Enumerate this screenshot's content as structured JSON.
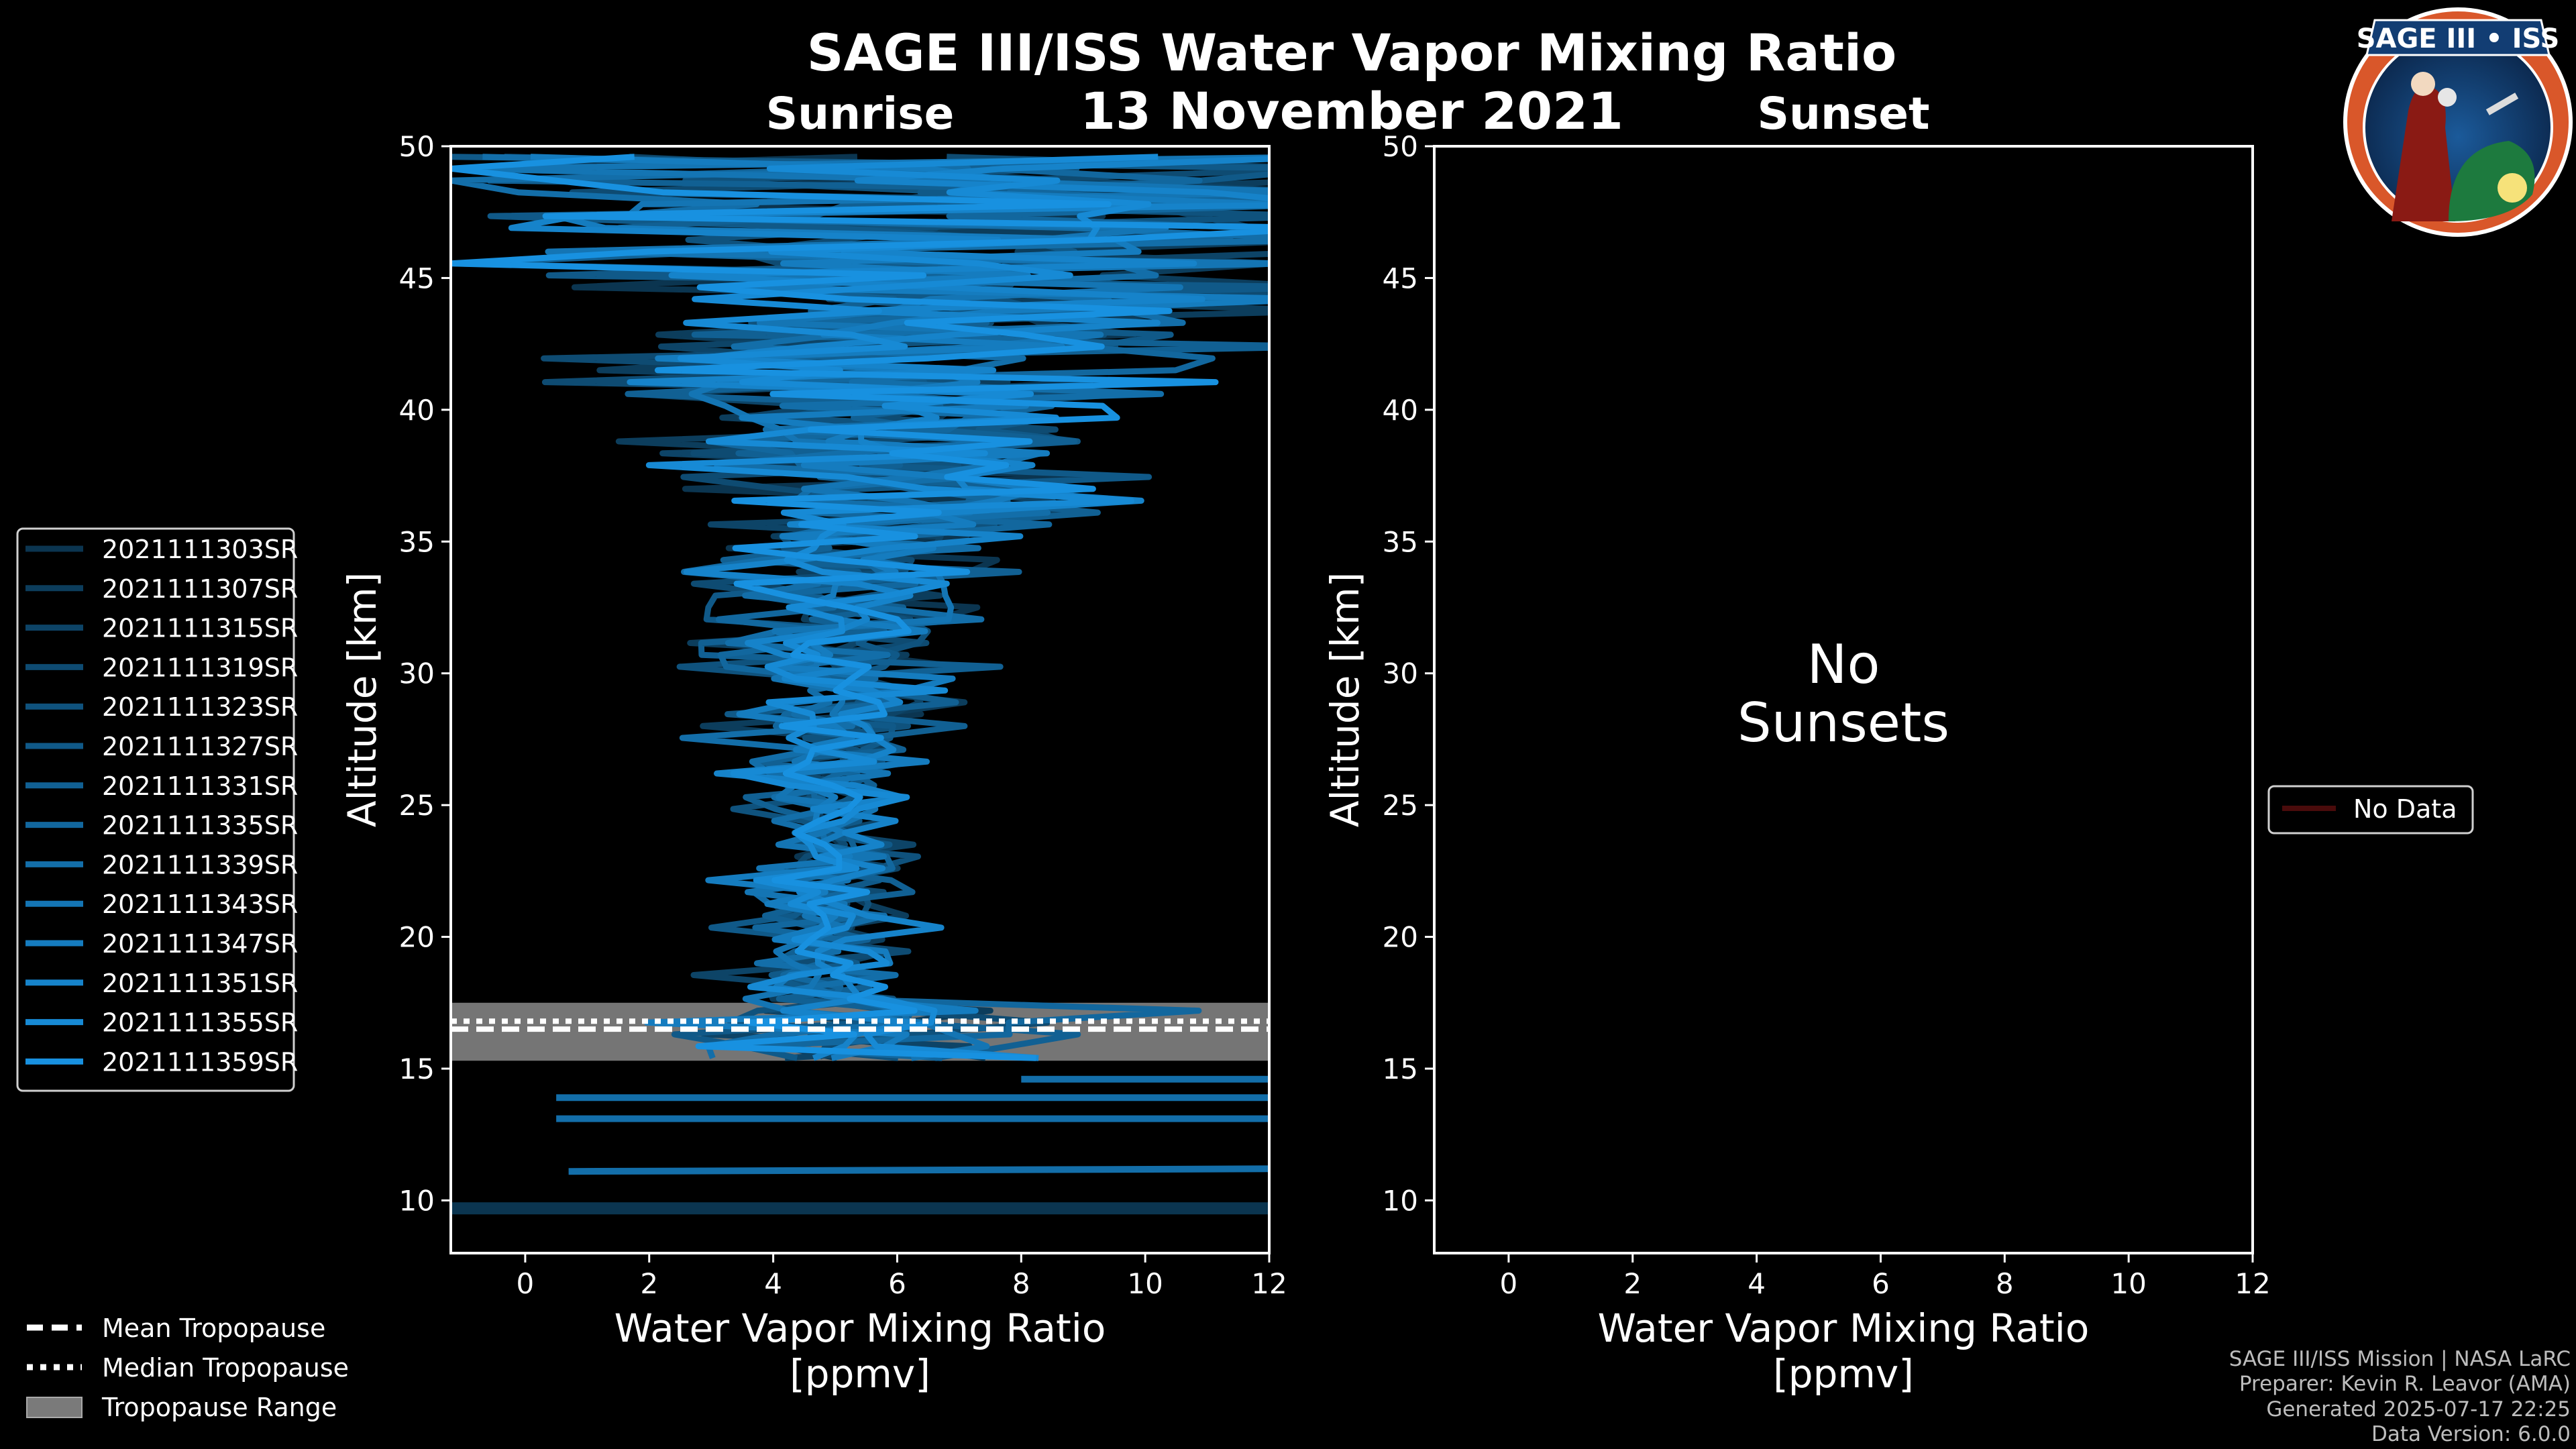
{
  "chart_data": {
    "type": "line",
    "title": "SAGE III/ISS Water Vapor Mixing Ratio",
    "date": "13 November 2021",
    "panels": [
      {
        "name": "Sunrise",
        "xlabel": "Water Vapor Mixing Ratio",
        "xlabel_units": "[ppmv]",
        "ylabel": "Altitude [km]",
        "xlim": [
          -1.2,
          12
        ],
        "ylim": [
          8,
          50
        ],
        "xticks": [
          0,
          2,
          4,
          6,
          8,
          10,
          12
        ],
        "yticks": [
          10,
          15,
          20,
          25,
          30,
          35,
          40,
          45,
          50
        ],
        "series": [
          {
            "name": "2021111303SR",
            "color": "#0b3550"
          },
          {
            "name": "2021111307SR",
            "color": "#0c3d5c"
          },
          {
            "name": "2021111315SR",
            "color": "#0d4467"
          },
          {
            "name": "2021111319SR",
            "color": "#0e4b72"
          },
          {
            "name": "2021111323SR",
            "color": "#0f527d"
          },
          {
            "name": "2021111327SR",
            "color": "#105988"
          },
          {
            "name": "2021111331SR",
            "color": "#116093"
          },
          {
            "name": "2021111335SR",
            "color": "#12679e"
          },
          {
            "name": "2021111339SR",
            "color": "#136ea9"
          },
          {
            "name": "2021111343SR",
            "color": "#1475b4"
          },
          {
            "name": "2021111347SR",
            "color": "#157cbf"
          },
          {
            "name": "2021111351SR",
            "color": "#1683ca"
          },
          {
            "name": "2021111355SR",
            "color": "#178ad5"
          },
          {
            "name": "2021111359SR",
            "color": "#1891e0"
          }
        ],
        "tropopause": {
          "mean": 16.5,
          "median": 16.8,
          "range": [
            15.3,
            17.5
          ]
        }
      },
      {
        "name": "Sunset",
        "xlabel": "Water Vapor Mixing Ratio",
        "xlabel_units": "[ppmv]",
        "ylabel": "Altitude [km]",
        "xlim": [
          -1.2,
          12
        ],
        "ylim": [
          8,
          50
        ],
        "xticks": [
          0,
          2,
          4,
          6,
          8,
          10,
          12
        ],
        "yticks": [
          10,
          15,
          20,
          25,
          30,
          35,
          40,
          45,
          50
        ],
        "no_data_line1": "No",
        "no_data_line2": "Sunsets",
        "legend": [
          {
            "name": "No Data",
            "color": "#4a0b0b"
          }
        ]
      }
    ],
    "tropo_legend": {
      "mean": "Mean Tropopause",
      "median": "Median Tropopause",
      "range": "Tropopause Range"
    }
  },
  "logo": {
    "text": "SAGE III • ISS"
  },
  "credits": [
    "SAGE III/ISS Mission | NASA LaRC",
    "Preparer: Kevin R. Leavor (AMA)",
    "Generated 2025-07-17 22:25",
    "Data Version: 6.0.0"
  ]
}
